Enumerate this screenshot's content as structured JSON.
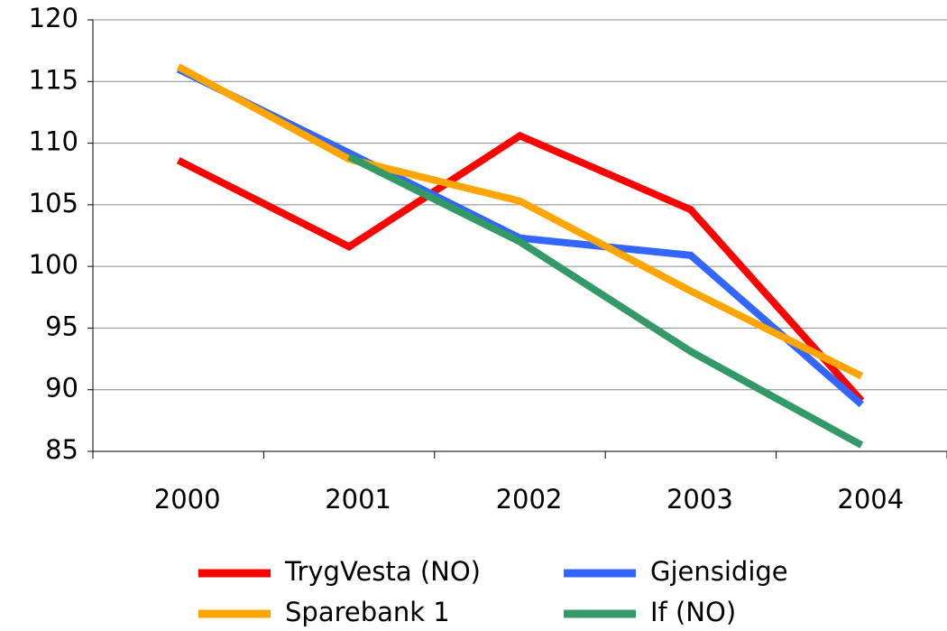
{
  "chart_data": {
    "type": "line",
    "categories": [
      "2000",
      "2001",
      "2002",
      "2003",
      "2004"
    ],
    "series": [
      {
        "name": "TrygVesta (NO)",
        "color": "#ff0000",
        "values": [
          108.6,
          101.6,
          110.6,
          104.6,
          89.1
        ]
      },
      {
        "name": "Gjensidige",
        "color": "#3366ff",
        "values": [
          116.0,
          109.2,
          102.3,
          100.9,
          88.8
        ]
      },
      {
        "name": "Sparebank 1",
        "color": "#ffa500",
        "values": [
          116.2,
          108.7,
          105.3,
          98.0,
          91.1
        ]
      },
      {
        "name": "If (NO)",
        "color": "#339966",
        "values": [
          null,
          108.9,
          102.0,
          93.1,
          85.5
        ]
      }
    ],
    "ylim": [
      85,
      120
    ],
    "yticks": [
      85,
      90,
      95,
      100,
      105,
      110,
      115,
      120
    ],
    "grid": true
  }
}
